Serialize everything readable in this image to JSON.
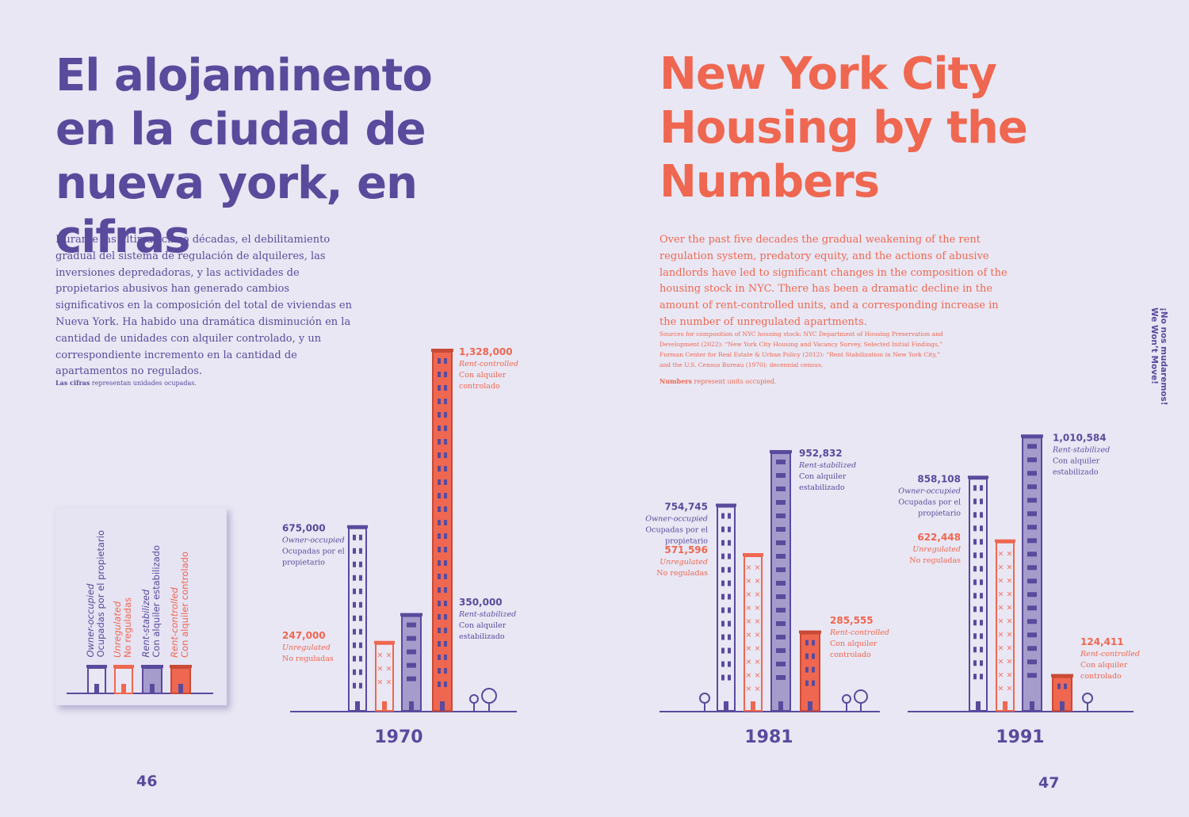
{
  "left_page": {
    "title": "El alojaminento en la ciudad de nueva york, en cifras",
    "intro": "Durante las últimas cinco décadas, el debilitamiento gradual del sistema de regulación de alquileres, las inversiones depredadoras, y las actividades de propietarios abusivos han generado cambios significativos en la composición del total de viviendas en Nueva York. Ha habido una dramática disminución en la cantidad de unidades con alquiler controlado, y un correspondiente incremento en la cantidad de apartamentos no regulados.",
    "note_bold": "Las cifras",
    "note_rest": " representan unidades ocupadas.",
    "page_number": "46"
  },
  "right_page": {
    "title": "New York City Housing by the Numbers",
    "intro": "Over the past five decades the gradual weakening of the rent regulation system, predatory equity, and the actions of abusive landlords have led to significant changes in the composition of the housing stock in NYC. There has been a dramatic decline in the amount of rent-controlled units, and a corresponding increase in the number of unregulated apartments.",
    "sources": "Sources for composition of NYC housing stock: NYC Department of Housing Preservation and Development (2022): “New York City Housing and Vacancy Survey, Selected Initial Findings,” Furman Center for Real Estate & Urban Policy (2012): “Rent Stabilization in New York City,” and the U.S. Census Bureau (1970): decennial census.",
    "note_bold": "Numbers",
    "note_rest": " represent units occupied.",
    "page_number": "47"
  },
  "sidebar": {
    "es": "¡No nos mudaremos!",
    "en": "We Won’t Move!"
  },
  "colors": {
    "purple": "#5a4a9c",
    "lilac": "#a59ccc",
    "coral": "#ef6750",
    "background": "#e9e7f4"
  },
  "legend": [
    {
      "key": "owner",
      "en": "Owner-occupied",
      "es": "Ocupadas por el propietario"
    },
    {
      "key": "unreg",
      "en": "Unregulated",
      "es": "No reguladas"
    },
    {
      "key": "stab",
      "en": "Rent-stabilized",
      "es": "Con alquiler estabilizado"
    },
    {
      "key": "ctrl",
      "en": "Rent-controlled",
      "es": "Con alquiler controlado"
    }
  ],
  "chart_data": [
    {
      "type": "bar",
      "year": "1970",
      "categories": [
        "Owner-occupied",
        "Unregulated",
        "Rent-stabilized",
        "Rent-controlled"
      ],
      "values": [
        675000,
        247000,
        350000,
        1328000
      ],
      "labels": [
        {
          "value": "675,000",
          "en": "Owner-occupied",
          "es": "Ocupadas por el propietario"
        },
        {
          "value": "247,000",
          "en": "Unregulated",
          "es": "No reguladas"
        },
        {
          "value": "350,000",
          "en": "Rent-stabilized",
          "es": "Con alquiler estabilizado"
        },
        {
          "value": "1,328,000",
          "en": "Rent-controlled",
          "es": "Con alquiler controlado"
        }
      ]
    },
    {
      "type": "bar",
      "year": "1981",
      "categories": [
        "Owner-occupied",
        "Unregulated",
        "Rent-stabilized",
        "Rent-controlled"
      ],
      "values": [
        754745,
        571596,
        952832,
        285555
      ],
      "labels": [
        {
          "value": "754,745",
          "en": "Owner-occupied",
          "es": "Ocupadas por el propietario"
        },
        {
          "value": "571,596",
          "en": "Unregulated",
          "es": "No reguladas"
        },
        {
          "value": "952,832",
          "en": "Rent-stabilized",
          "es": "Con alquiler estabilizado"
        },
        {
          "value": "285,555",
          "en": "Rent-controlled",
          "es": "Con alquiler controlado"
        }
      ]
    },
    {
      "type": "bar",
      "year": "1991",
      "categories": [
        "Owner-occupied",
        "Unregulated",
        "Rent-stabilized",
        "Rent-controlled"
      ],
      "values": [
        858108,
        622448,
        1010584,
        124411
      ],
      "labels": [
        {
          "value": "858,108",
          "en": "Owner-occupied",
          "es": "Ocupadas por el propietario"
        },
        {
          "value": "622,448",
          "en": "Unregulated",
          "es": "No reguladas"
        },
        {
          "value": "1,010,584",
          "en": "Rent-stabilized",
          "es": "Con alquiler estabilizado"
        },
        {
          "value": "124,411",
          "en": "Rent-controlled",
          "es": "Con alquiler controlado"
        }
      ]
    }
  ]
}
